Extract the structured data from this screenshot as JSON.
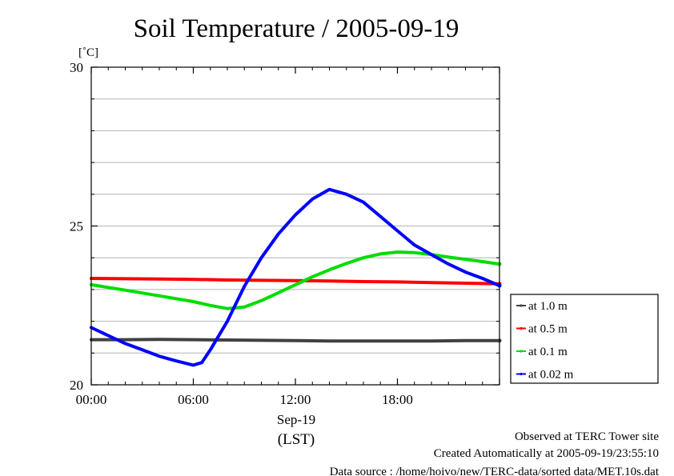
{
  "chart_data": {
    "type": "line",
    "title": "Soil Temperature / 2005-09-19",
    "ylabel": "[˚C]",
    "ylim": [
      20,
      30
    ],
    "yticks": [
      20,
      25,
      30
    ],
    "xlim_hours": [
      0,
      24
    ],
    "xticks": [
      {
        "hour": 0,
        "label": "00:00"
      },
      {
        "hour": 6,
        "label": "06:00"
      },
      {
        "hour": 12,
        "label": "12:00"
      },
      {
        "hour": 18,
        "label": "18:00"
      }
    ],
    "date_label": "Sep-19",
    "xlabel": "(LST)",
    "grid": "horizontal",
    "legend_position": "right",
    "series": [
      {
        "name": "at 1.0 m",
        "color": "#404040",
        "x": [
          0,
          2,
          4,
          6,
          8,
          10,
          12,
          14,
          16,
          18,
          20,
          22,
          24
        ],
        "y": [
          21.42,
          21.42,
          21.43,
          21.42,
          21.41,
          21.4,
          21.39,
          21.38,
          21.38,
          21.38,
          21.38,
          21.39,
          21.39
        ]
      },
      {
        "name": "at 0.5 m",
        "color": "#ff0000",
        "x": [
          0,
          2,
          4,
          6,
          8,
          10,
          12,
          14,
          16,
          18,
          20,
          22,
          24
        ],
        "y": [
          23.35,
          23.34,
          23.33,
          23.32,
          23.3,
          23.29,
          23.28,
          23.27,
          23.25,
          23.24,
          23.22,
          23.2,
          23.18
        ]
      },
      {
        "name": "at 0.1 m",
        "color": "#00dd00",
        "x": [
          0,
          2,
          4,
          6,
          7,
          8,
          9,
          10,
          11,
          12,
          13,
          14,
          15,
          16,
          17,
          18,
          19,
          20,
          21,
          22,
          23,
          24
        ],
        "y": [
          23.15,
          22.98,
          22.8,
          22.62,
          22.5,
          22.4,
          22.45,
          22.65,
          22.9,
          23.15,
          23.4,
          23.62,
          23.82,
          24.0,
          24.12,
          24.18,
          24.16,
          24.1,
          24.02,
          23.95,
          23.88,
          23.8
        ]
      },
      {
        "name": "at 0.02 m",
        "color": "#0000ff",
        "x": [
          0,
          1,
          2,
          3,
          4,
          5,
          6,
          6.5,
          7,
          8,
          9,
          10,
          11,
          12,
          13,
          14,
          15,
          16,
          17,
          18,
          19,
          20,
          21,
          22,
          23,
          24
        ],
        "y": [
          21.8,
          21.55,
          21.3,
          21.1,
          20.9,
          20.75,
          20.62,
          20.7,
          21.1,
          22.0,
          23.1,
          24.0,
          24.75,
          25.35,
          25.85,
          26.15,
          26.0,
          25.75,
          25.3,
          24.85,
          24.4,
          24.1,
          23.8,
          23.55,
          23.35,
          23.12
        ]
      }
    ]
  },
  "footer": {
    "line1": "Observed at TERC Tower site",
    "line2": "Created Automatically at 2005-09-19/23:55:10",
    "line3": "Data source : /home/hoivo/new/TERC-data/sorted  data/MET.10s.dat"
  }
}
